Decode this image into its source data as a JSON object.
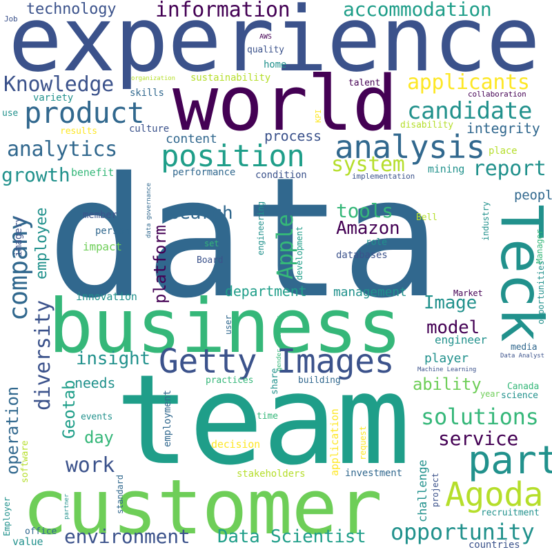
{
  "palette": {
    "dark_purple": "#440154",
    "indigo": "#3b528b",
    "blue": "#31688e",
    "teal": "#21918c",
    "green_teal": "#1f9e89",
    "green": "#35b779",
    "light_green": "#6ece58",
    "lime": "#b5de2b",
    "yellow": "#fde725"
  },
  "words": [
    "data",
    "team",
    "customer",
    "business",
    "experience",
    "world",
    "Teck",
    "Getty Images",
    "part",
    "Agoda",
    "company",
    "position",
    "analysis",
    "product",
    "information",
    "accommodation",
    "applicants",
    "candidate",
    "Knowledge",
    "technology",
    "analytics",
    "system",
    "report",
    "growth",
    "integrity",
    "process",
    "content",
    "people",
    "tools",
    "Apple",
    "Amazon",
    "search",
    "platform",
    "employee",
    "diversity",
    "operation",
    "Geotab",
    "solutions",
    "service",
    "opportunity",
    "environment",
    "Data Scientist",
    "work",
    "insight",
    "model",
    "Image",
    "department",
    "day",
    "needs",
    "ability",
    "player",
    "engineer",
    "management",
    "innovation",
    "impact",
    "person",
    "member",
    "imagery",
    "benefit",
    "performance",
    "condition",
    "mining",
    "place",
    "implementation",
    "disability",
    "culture",
    "results",
    "KPI",
    "skills",
    "variety",
    "use",
    "Job",
    "AWS",
    "quality",
    "home",
    "sustainability",
    "organization",
    "talent",
    "collaboration",
    "data governance",
    "engineering",
    "development",
    "Bell",
    "industry",
    "opportunities",
    "Manager",
    "role",
    "databases",
    "set",
    "Board",
    "Market",
    "user",
    "gender identity",
    "media",
    "Data Analyst",
    "Machine Learning",
    "building",
    "share",
    "application",
    "Canada",
    "year",
    "science",
    "events",
    "employment",
    "practices",
    "software",
    "decision",
    "time",
    "request",
    "challenge",
    "project",
    "investment",
    "stakeholders",
    "standard",
    "partner",
    "Employer",
    "office",
    "value",
    "recruitment",
    "countries"
  ]
}
